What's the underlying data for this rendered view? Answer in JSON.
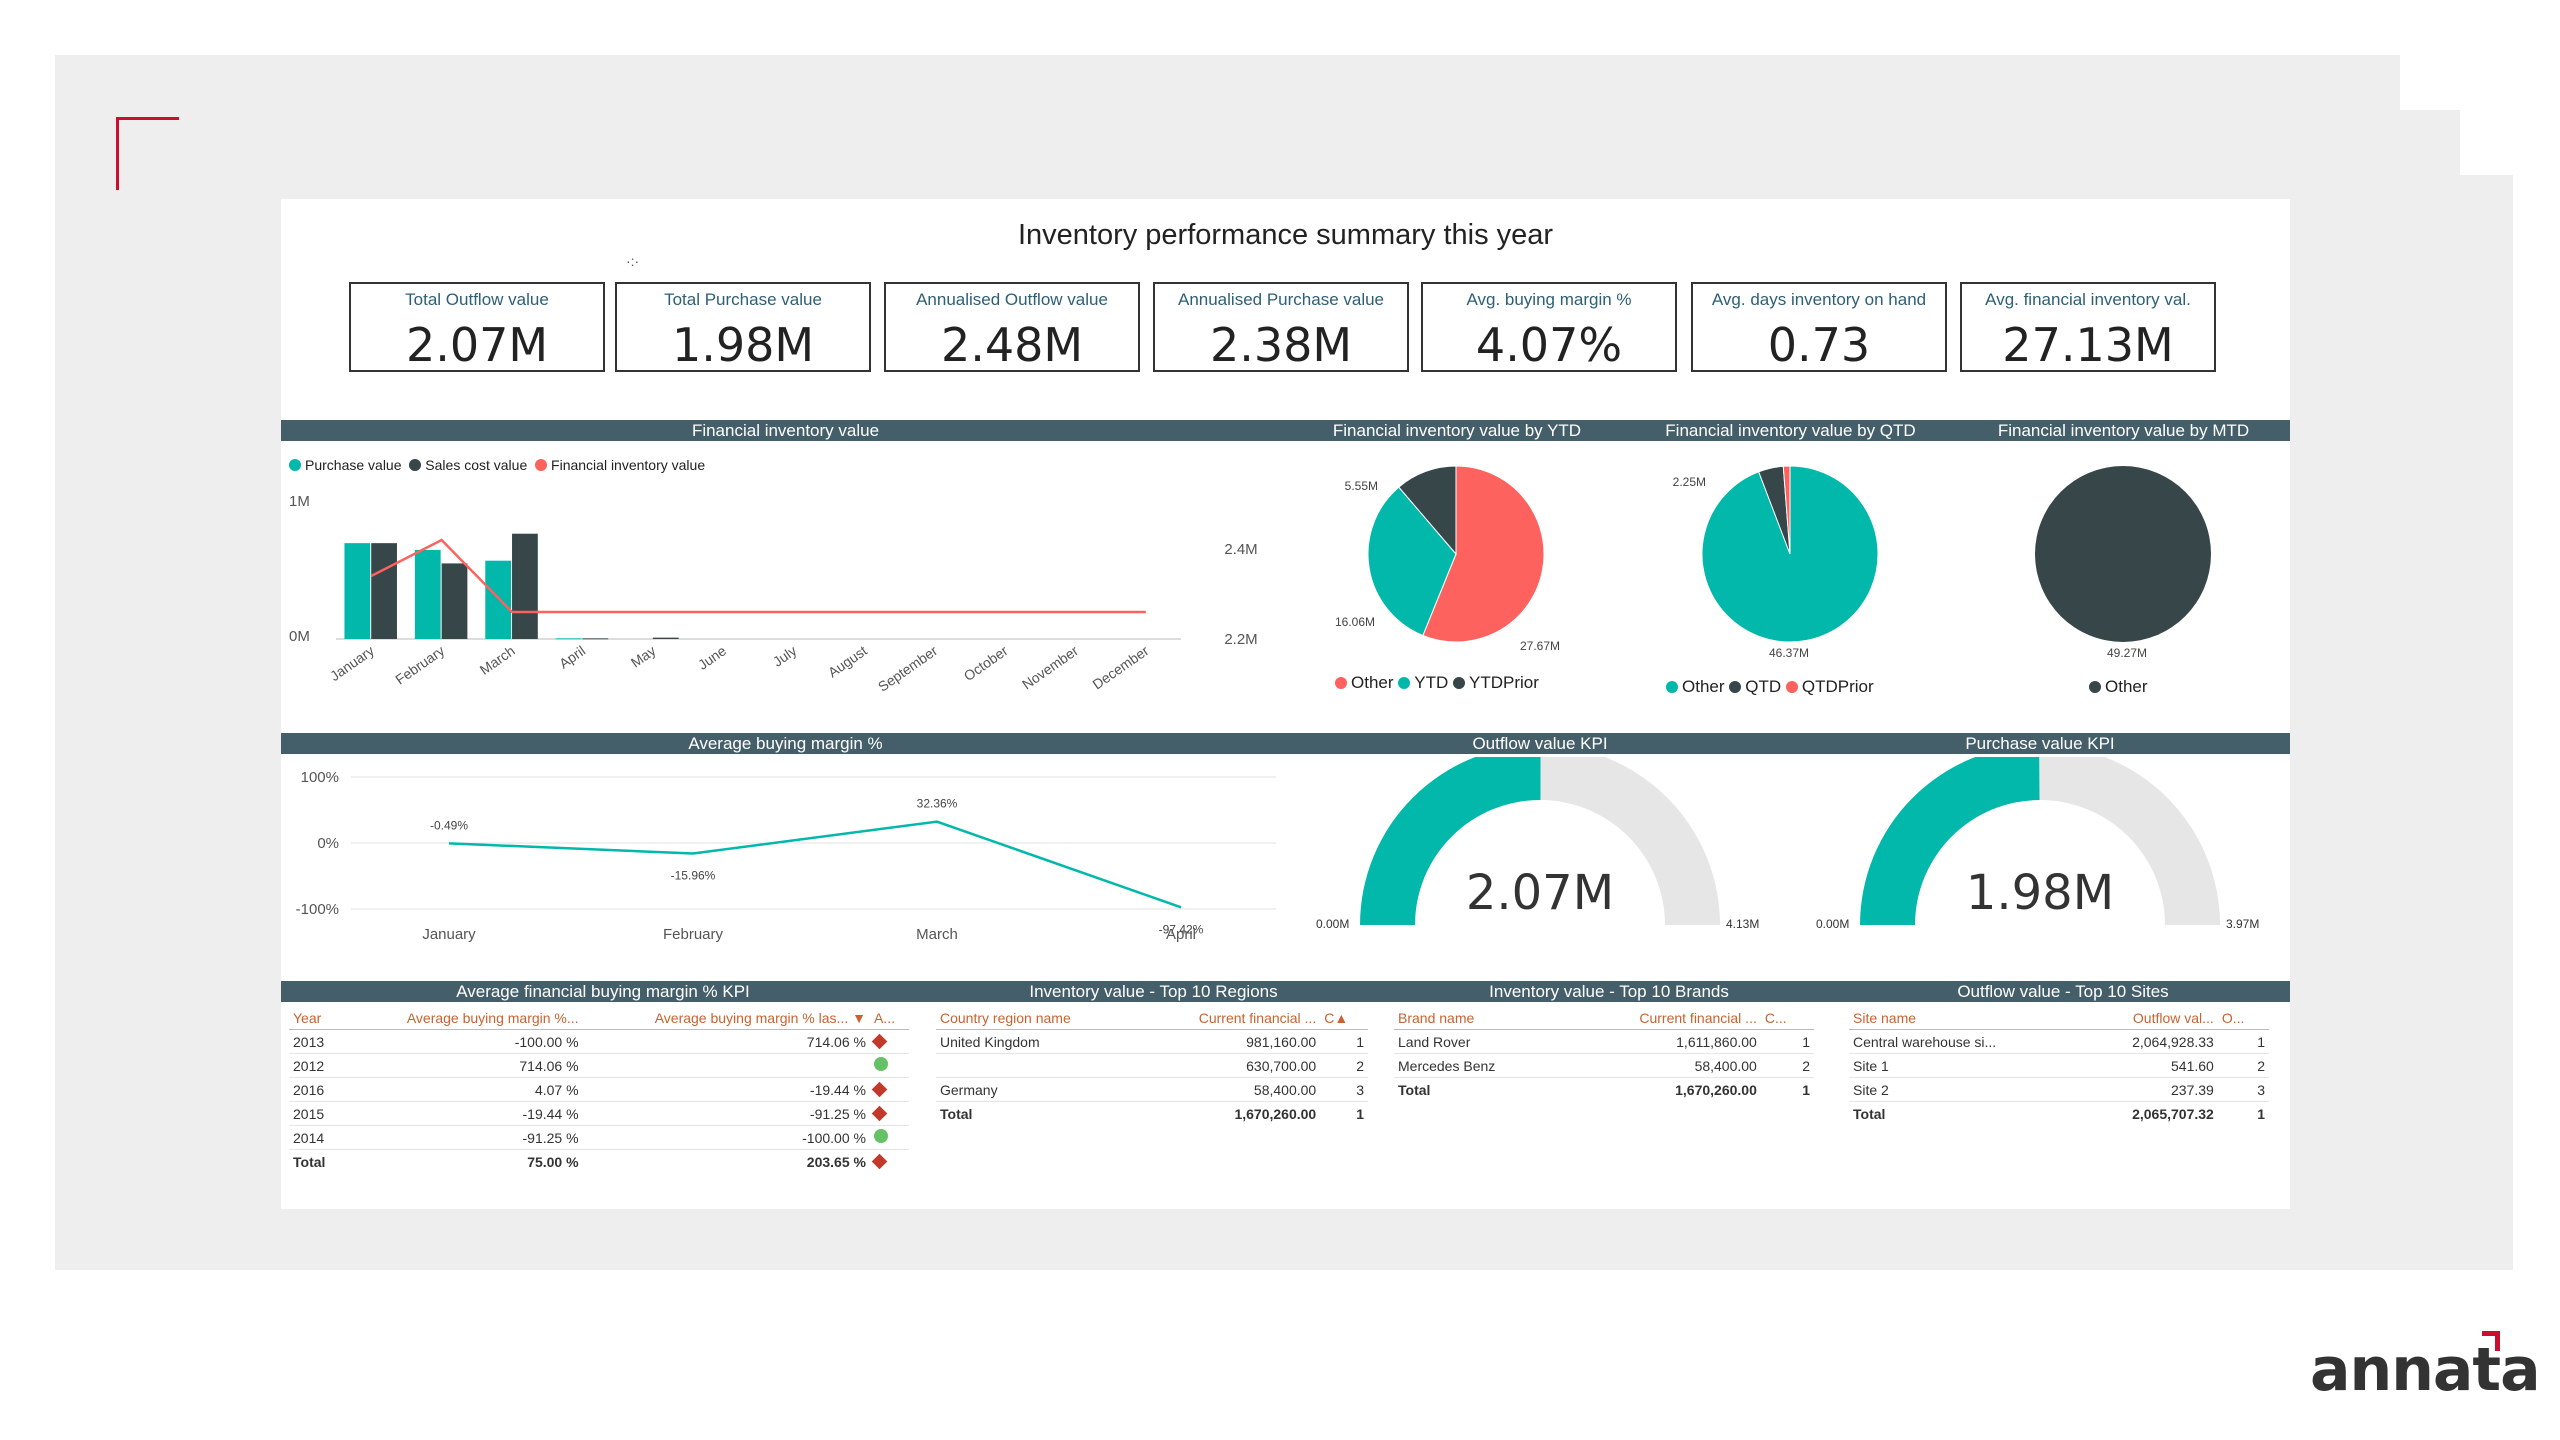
{
  "title": "Inventory performance summary this year",
  "spinner": "·:·",
  "kpis": [
    {
      "label": "Total Outflow value",
      "value": "2.07M"
    },
    {
      "label": "Total Purchase value",
      "value": "1.98M"
    },
    {
      "label": "Annualised Outflow value",
      "value": "2.48M"
    },
    {
      "label": "Annualised Purchase value",
      "value": "2.38M"
    },
    {
      "label": "Avg. buying margin %",
      "value": "4.07%"
    },
    {
      "label": "Avg. days inventory on hand",
      "value": "0.73"
    },
    {
      "label": "Avg. financial inventory val.",
      "value": "27.13M"
    }
  ],
  "sections": {
    "fin_inv": "Financial inventory value",
    "ytd": "Financial inventory value by YTD",
    "qtd": "Financial inventory value by QTD",
    "mtd": "Financial inventory value by MTD",
    "abm": "Average buying margin %",
    "outflow_kpi": "Outflow value KPI",
    "purchase_kpi": "Purchase value KPI",
    "afbm": "Average financial buying margin % KPI",
    "regions": "Inventory value - Top 10 Regions",
    "brands": "Inventory value - Top 10 Brands",
    "sites": "Outflow value - Top 10 Sites"
  },
  "chart_data": [
    {
      "type": "bar",
      "title": "Financial inventory value",
      "legend": [
        {
          "name": "Purchase value",
          "color": "#01b8aa"
        },
        {
          "name": "Sales cost value",
          "color": "#374649"
        },
        {
          "name": "Financial inventory value",
          "color": "#fd625e"
        }
      ],
      "categories": [
        "January",
        "February",
        "March",
        "April",
        "May",
        "June",
        "July",
        "August",
        "September",
        "October",
        "November",
        "December"
      ],
      "y_ticks": [
        "1M",
        "0M"
      ],
      "y2_ticks": [
        "2.4M",
        "2.2M"
      ],
      "ylim": [
        0,
        1000000
      ],
      "y2lim": [
        2200000,
        2500000
      ],
      "series": [
        {
          "name": "Purchase value",
          "values": [
            710000,
            660000,
            580000,
            5000,
            0,
            0,
            0,
            0,
            0,
            0,
            0,
            0
          ]
        },
        {
          "name": "Sales cost value",
          "values": [
            710000,
            560000,
            780000,
            5000,
            10000,
            0,
            0,
            0,
            0,
            0,
            0,
            0
          ]
        },
        {
          "name": "Financial inventory value",
          "axis": "y2",
          "values": [
            2340000,
            2420000,
            2260000,
            2260000,
            2260000,
            2260000,
            2260000,
            2260000,
            2260000,
            2260000,
            2260000,
            2260000
          ]
        }
      ]
    },
    {
      "type": "pie",
      "title": "Financial inventory value by YTD",
      "slices": [
        {
          "name": "Other",
          "value": 27.67,
          "label": "27.67M",
          "color": "#fd625e"
        },
        {
          "name": "YTD",
          "value": 16.06,
          "label": "16.06M",
          "color": "#01b8aa"
        },
        {
          "name": "YTDPrior",
          "value": 5.55,
          "label": "5.55M",
          "color": "#374649"
        }
      ],
      "legend": [
        "Other",
        "YTD",
        "YTDPrior"
      ]
    },
    {
      "type": "pie",
      "title": "Financial inventory value by QTD",
      "slices": [
        {
          "name": "Other",
          "value": 46.37,
          "label": "46.37M",
          "color": "#01b8aa"
        },
        {
          "name": "QTD",
          "value": 2.25,
          "label": "2.25M",
          "color": "#374649"
        },
        {
          "name": "QTDPrior",
          "value": 0.6,
          "label": "",
          "color": "#fd625e"
        }
      ],
      "legend": [
        {
          "name": "Other",
          "color": "#01b8aa"
        },
        {
          "name": "QTD",
          "color": "#374649"
        },
        {
          "name": "QTDPrior",
          "color": "#fd625e"
        }
      ]
    },
    {
      "type": "pie",
      "title": "Financial inventory value by MTD",
      "slices": [
        {
          "name": "Other",
          "value": 49.27,
          "label": "49.27M",
          "color": "#374649"
        }
      ],
      "legend": [
        {
          "name": "Other",
          "color": "#374649"
        }
      ]
    },
    {
      "type": "line",
      "title": "Average buying margin %",
      "categories": [
        "January",
        "February",
        "March",
        "April"
      ],
      "values": [
        -0.49,
        -15.96,
        32.36,
        -97.42
      ],
      "value_labels": [
        "-0.49%",
        "-15.96%",
        "32.36%",
        "-97.42%"
      ],
      "y_ticks": [
        "100%",
        "0%",
        "-100%"
      ],
      "ylim": [
        -100,
        100
      ]
    },
    {
      "type": "gauge",
      "title": "Outflow value KPI",
      "value": 2.07,
      "min": 0,
      "max": 4.13,
      "value_label": "2.07M",
      "min_label": "0.00M",
      "max_label": "4.13M"
    },
    {
      "type": "gauge",
      "title": "Purchase value KPI",
      "value": 1.98,
      "min": 0,
      "max": 3.97,
      "value_label": "1.98M",
      "min_label": "0.00M",
      "max_label": "3.97M"
    }
  ],
  "afbm_table": {
    "headers": [
      "Year",
      "Average buying margin %...",
      "Average buying margin % las...",
      "A..."
    ],
    "rows": [
      {
        "year": "2013",
        "a": "-100.00 %",
        "b": "714.06 %",
        "status": "down"
      },
      {
        "year": "2012",
        "a": "714.06 %",
        "b": "",
        "status": "up"
      },
      {
        "year": "2016",
        "a": "4.07 %",
        "b": "-19.44 %",
        "status": "down"
      },
      {
        "year": "2015",
        "a": "-19.44 %",
        "b": "-91.25 %",
        "status": "down"
      },
      {
        "year": "2014",
        "a": "-91.25 %",
        "b": "-100.00 %",
        "status": "up"
      }
    ],
    "total": {
      "year": "Total",
      "a": "75.00 %",
      "b": "203.65 %",
      "status": "down"
    }
  },
  "regions_table": {
    "headers": [
      "Country region name",
      "Current financial ...",
      "C"
    ],
    "rows": [
      [
        "United Kingdom",
        "981,160.00",
        "1"
      ],
      [
        "",
        "630,700.00",
        "2"
      ],
      [
        "Germany",
        "58,400.00",
        "3"
      ]
    ],
    "total": [
      "Total",
      "1,670,260.00",
      "1"
    ]
  },
  "brands_table": {
    "headers": [
      "Brand name",
      "Current financial ...",
      "C..."
    ],
    "rows": [
      [
        "Land Rover",
        "1,611,860.00",
        "1"
      ],
      [
        "Mercedes Benz",
        "58,400.00",
        "2"
      ]
    ],
    "total": [
      "Total",
      "1,670,260.00",
      "1"
    ]
  },
  "sites_table": {
    "headers": [
      "Site name",
      "Outflow val...",
      "O..."
    ],
    "rows": [
      [
        "Central warehouse si...",
        "2,064,928.33",
        "1"
      ],
      [
        "Site 1",
        "541.60",
        "2"
      ],
      [
        "Site 2",
        "237.39",
        "3"
      ]
    ],
    "total": [
      "Total",
      "2,065,707.32",
      "1"
    ]
  },
  "logo": "annata",
  "colors": {
    "teal": "#01b8aa",
    "dark": "#374649",
    "red": "#fd625e",
    "header": "#455f6a",
    "accent": "#c8102e"
  }
}
